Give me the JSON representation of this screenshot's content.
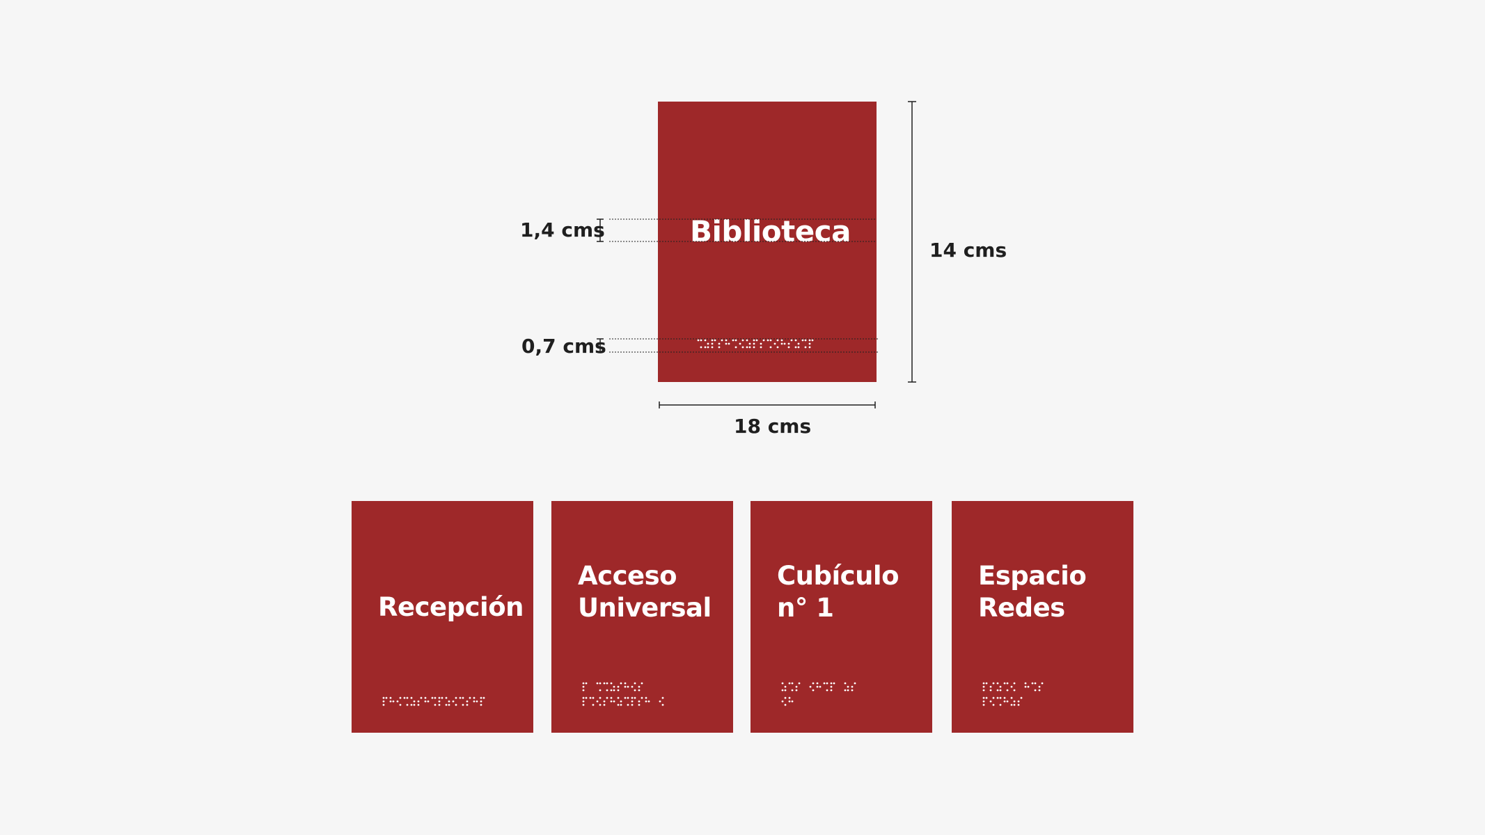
{
  "colors": {
    "background": "#f6f6f6",
    "sign": "#9e2829",
    "sign_text": "#ffffff",
    "annotation": "#1f1f1f"
  },
  "main_sign": {
    "title": "Biblioteca",
    "dimensions": {
      "text_height": "1,4 cms",
      "braille_height": "0,7 cms",
      "height": "14 cms",
      "width": "18 cms"
    }
  },
  "examples": [
    {
      "line1": "Recepción",
      "line2": ""
    },
    {
      "line1": "Acceso",
      "line2": "Universal"
    },
    {
      "line1": "Cubículo",
      "line2": "n° 1"
    },
    {
      "line1": "Espacio",
      "line2": "Redes"
    }
  ]
}
